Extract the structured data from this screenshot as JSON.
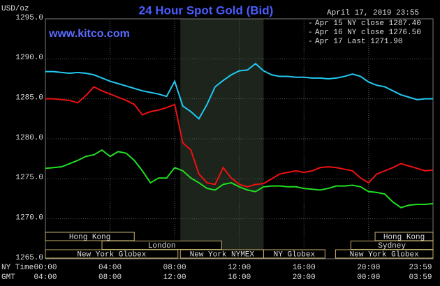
{
  "chart_data": {
    "type": "line",
    "title": "24 Hour Spot Gold (Bid)",
    "subtitle": "www.kitco.com",
    "timestamp": "April 17, 2019 23:55",
    "y_label": "USD/oz",
    "x_label": "NY Time",
    "x2_label": "GMT",
    "grid": true,
    "x": [
      0,
      0.5,
      1,
      1.5,
      2,
      2.5,
      3,
      3.5,
      4,
      4.5,
      5,
      5.5,
      6,
      6.5,
      7,
      7.5,
      8,
      8.5,
      9,
      9.5,
      10,
      10.5,
      11,
      11.5,
      12,
      12.5,
      13,
      13.5,
      14,
      14.5,
      15,
      15.5,
      16,
      16.5,
      17,
      17.5,
      18,
      18.5,
      19,
      19.5,
      20,
      20.5,
      21,
      21.5,
      22,
      22.5,
      23,
      23.5,
      23.983
    ],
    "xlim": [
      0,
      23.983
    ],
    "xticks": [
      {
        "value": 0,
        "label": "00:00"
      },
      {
        "value": 4,
        "label": "04:00"
      },
      {
        "value": 8,
        "label": "08:00"
      },
      {
        "value": 12,
        "label": "12:00"
      },
      {
        "value": 16,
        "label": "16:00"
      },
      {
        "value": 20,
        "label": "20:00"
      },
      {
        "value": 23.983,
        "label": "23:59"
      }
    ],
    "x2ticks": [
      {
        "value": 0,
        "label": "04:00"
      },
      {
        "value": 4,
        "label": "08:00"
      },
      {
        "value": 8,
        "label": "12:00"
      },
      {
        "value": 12,
        "label": "16:00"
      },
      {
        "value": 16,
        "label": "20:00"
      },
      {
        "value": 20,
        "label": "00:00"
      },
      {
        "value": 23.983,
        "label": "03:59"
      }
    ],
    "ylim": [
      1265,
      1295
    ],
    "yticks": [
      {
        "value": 1265,
        "label": "1265.0"
      },
      {
        "value": 1270,
        "label": "1270.0"
      },
      {
        "value": 1275,
        "label": "1275.0"
      },
      {
        "value": 1280,
        "label": "1280.0"
      },
      {
        "value": 1285,
        "label": "1285.0"
      },
      {
        "value": 1290,
        "label": "1290.0"
      },
      {
        "value": 1295,
        "label": "1295.0"
      }
    ],
    "series": [
      {
        "name": "Apr 15 NY close 1287.40",
        "color": "#22c8f0",
        "values": [
          1288.4,
          1288.4,
          1288.3,
          1288.2,
          1288.3,
          1288.2,
          1288.0,
          1287.6,
          1287.2,
          1286.9,
          1286.6,
          1286.3,
          1286.0,
          1285.8,
          1285.6,
          1285.3,
          1287.2,
          1284.1,
          1283.4,
          1282.5,
          1284.3,
          1286.5,
          1287.3,
          1288.0,
          1288.5,
          1288.6,
          1289.4,
          1288.5,
          1288.0,
          1287.8,
          1287.8,
          1287.7,
          1287.7,
          1287.6,
          1287.6,
          1287.5,
          1287.6,
          1287.8,
          1288.1,
          1287.8,
          1287.1,
          1286.7,
          1286.5,
          1286.0,
          1285.5,
          1285.2,
          1284.9,
          1285.0,
          1285.0
        ]
      },
      {
        "name": "Apr 16 NY close 1276.50",
        "color": "#ee1111",
        "values": [
          1285.0,
          1285.0,
          1284.9,
          1284.8,
          1284.5,
          1285.4,
          1286.5,
          1286.0,
          1285.6,
          1285.2,
          1284.8,
          1284.3,
          1283.0,
          1283.4,
          1283.6,
          1283.9,
          1284.3,
          1279.5,
          1278.6,
          1275.6,
          1274.5,
          1274.3,
          1276.4,
          1275.1,
          1274.3,
          1274.0,
          1274.3,
          1274.4,
          1275.0,
          1275.6,
          1275.8,
          1276.0,
          1275.8,
          1276.0,
          1276.4,
          1276.5,
          1276.4,
          1276.2,
          1276.0,
          1275.1,
          1274.5,
          1275.6,
          1276.0,
          1276.4,
          1276.9,
          1276.6,
          1276.3,
          1276.0,
          1276.1
        ]
      },
      {
        "name": "Apr 17 Last 1271.90",
        "color": "#22dd22",
        "values": [
          1276.3,
          1276.4,
          1276.5,
          1276.9,
          1277.3,
          1277.8,
          1278.0,
          1278.6,
          1277.8,
          1278.4,
          1278.2,
          1277.3,
          1276.0,
          1274.5,
          1275.1,
          1275.1,
          1276.4,
          1276.0,
          1275.1,
          1274.5,
          1273.8,
          1273.6,
          1274.3,
          1274.5,
          1274.0,
          1273.6,
          1273.4,
          1274.0,
          1274.1,
          1274.1,
          1274.0,
          1274.0,
          1273.8,
          1273.7,
          1273.6,
          1273.8,
          1274.1,
          1274.1,
          1274.2,
          1274.0,
          1273.4,
          1273.3,
          1273.1,
          1272.1,
          1271.4,
          1271.7,
          1271.8,
          1271.8,
          1271.9
        ]
      }
    ],
    "sessions": [
      [
        {
          "label": "Hong Kong",
          "start": 0,
          "end": 5.5
        },
        {
          "label": "Hong Kong",
          "start": 20.4,
          "end": 23.983
        }
      ],
      [
        {
          "label": "London",
          "start": 3.5,
          "end": 10.9
        },
        {
          "label": "Sydney",
          "start": 18.9,
          "end": 23.983
        }
      ],
      [
        {
          "label": "New York Globex",
          "start": 0,
          "end": 8.2
        },
        {
          "label": "New York NYMEX",
          "start": 8.35,
          "end": 13.5,
          "shaded": true
        },
        {
          "label": "NY Globex",
          "start": 13.5,
          "end": 17.3
        },
        {
          "label": "New York Globex",
          "start": 17.95,
          "end": 23.983
        }
      ]
    ]
  }
}
